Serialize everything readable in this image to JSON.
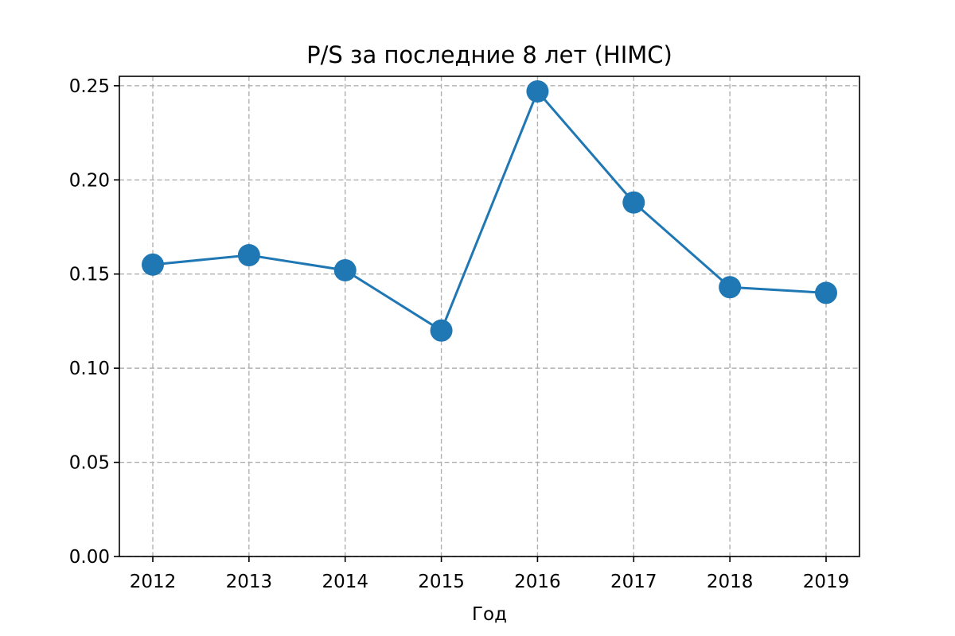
{
  "chart_data": {
    "type": "line",
    "title": "P/S за последние 8 лет (HIMC)",
    "xlabel": "Год",
    "ylabel": "",
    "categories": [
      "2012",
      "2013",
      "2014",
      "2015",
      "2016",
      "2017",
      "2018",
      "2019"
    ],
    "series": [
      {
        "values": [
          0.155,
          0.16,
          0.152,
          0.12,
          0.247,
          0.188,
          0.143,
          0.14
        ]
      }
    ],
    "ylim": [
      0,
      0.255
    ],
    "yticks": [
      "0.00",
      "0.05",
      "0.10",
      "0.15",
      "0.20",
      "0.25"
    ],
    "grid": true,
    "series_color": "#1f77b4"
  }
}
